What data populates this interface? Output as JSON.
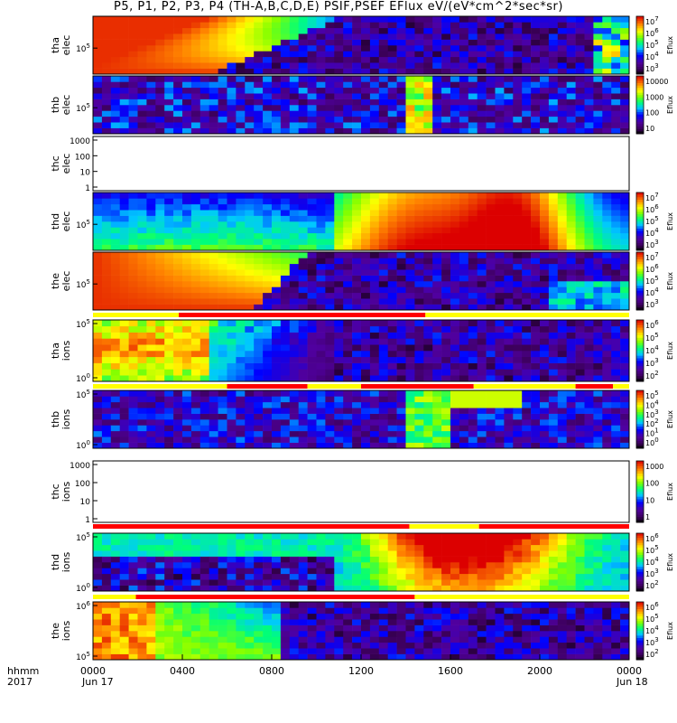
{
  "chart_data": {
    "type": "heatmap",
    "title": "P5, P1, P2, P3, P4 (TH-A,B,C,D,E) PSIF,PSEF EFlux eV/(eV*cm^2*sec*sr)",
    "x_tick_labels": [
      "0000",
      "0400",
      "0800",
      "1200",
      "1600",
      "2000",
      "0000"
    ],
    "x_date_labels": [
      "Jun 17",
      "Jun 18"
    ],
    "x_corner_labels": [
      "hhmm",
      "2017"
    ],
    "colorbar_label": "Eflux",
    "panels": [
      {
        "name": "tha elec",
        "label": [
          "tha",
          "elec"
        ],
        "y_ticks": [
          "10^5"
        ],
        "colorbar_ticks": [
          "10^7",
          "10^6",
          "10^5",
          "10^4",
          "10^3"
        ],
        "kind": "elec_a"
      },
      {
        "name": "thb elec",
        "label": [
          "thb",
          "elec"
        ],
        "y_ticks": [
          "10^5"
        ],
        "colorbar_ticks": [
          "10000",
          "1000",
          "100",
          "10"
        ],
        "kind": "elec_b"
      },
      {
        "name": "thc elec",
        "label": [
          "thc",
          "elec"
        ],
        "y_ticks": [
          "1000",
          "100",
          "10",
          "1"
        ],
        "colorbar_ticks": [],
        "kind": "empty"
      },
      {
        "name": "thd elec",
        "label": [
          "thd",
          "elec"
        ],
        "y_ticks": [
          "10^5"
        ],
        "colorbar_ticks": [
          "10^7",
          "10^6",
          "10^5",
          "10^4",
          "10^3"
        ],
        "kind": "elec_d"
      },
      {
        "name": "the elec",
        "label": [
          "the",
          "elec"
        ],
        "y_ticks": [
          "10^5"
        ],
        "colorbar_ticks": [
          "10^7",
          "10^6",
          "10^5",
          "10^4",
          "10^3"
        ],
        "kind": "elec_e"
      },
      {
        "name": "tha ions",
        "label": [
          "tha",
          "ions"
        ],
        "y_ticks": [
          "10^5",
          "10^0"
        ],
        "colorbar_ticks": [
          "10^6",
          "10^5",
          "10^4",
          "10^3",
          "10^2"
        ],
        "kind": "ion_a"
      },
      {
        "name": "thb ions",
        "label": [
          "thb",
          "ions"
        ],
        "y_ticks": [
          "10^5",
          "10^0"
        ],
        "colorbar_ticks": [
          "10^5",
          "10^4",
          "10^3",
          "10^2",
          "10^1",
          "10^0"
        ],
        "kind": "ion_b"
      },
      {
        "name": "thc ions",
        "label": [
          "thc",
          "ions"
        ],
        "y_ticks": [
          "1000",
          "100",
          "10",
          "1"
        ],
        "colorbar_ticks": [
          "1000",
          "100",
          "10",
          "1"
        ],
        "kind": "empty_cb"
      },
      {
        "name": "thd ions",
        "label": [
          "thd",
          "ions"
        ],
        "y_ticks": [
          "10^5",
          "10^0"
        ],
        "colorbar_ticks": [
          "10^6",
          "10^5",
          "10^4",
          "10^3",
          "10^2"
        ],
        "kind": "ion_d"
      },
      {
        "name": "the ions",
        "label": [
          "the",
          "ions"
        ],
        "y_ticks": [
          "10^6",
          "10^5"
        ],
        "colorbar_ticks": [
          "10^6",
          "10^5",
          "10^4",
          "10^3",
          "10^2"
        ],
        "kind": "ion_e"
      }
    ],
    "mode_bars": [
      {
        "after": "the elec",
        "segments": [
          {
            "from": 0,
            "to": 0.16,
            "color": "#ffff00"
          },
          {
            "from": 0.16,
            "to": 0.62,
            "color": "#ff0000"
          },
          {
            "from": 0.62,
            "to": 1,
            "color": "#ffff00"
          }
        ]
      },
      {
        "after": "tha ions",
        "segments": [
          {
            "from": 0,
            "to": 0.25,
            "color": "#ffff00"
          },
          {
            "from": 0.25,
            "to": 0.4,
            "color": "#ff0000"
          },
          {
            "from": 0.4,
            "to": 0.5,
            "color": "#ffff00"
          },
          {
            "from": 0.5,
            "to": 0.71,
            "color": "#ff0000"
          },
          {
            "from": 0.71,
            "to": 0.9,
            "color": "#ffff00"
          },
          {
            "from": 0.9,
            "to": 0.97,
            "color": "#ff0000"
          },
          {
            "from": 0.97,
            "to": 1,
            "color": "#ffff00"
          }
        ]
      },
      {
        "after": "thc ions",
        "segments": [
          {
            "from": 0,
            "to": 0.59,
            "color": "#ff0000"
          },
          {
            "from": 0.59,
            "to": 0.72,
            "color": "#ffff00"
          },
          {
            "from": 0.72,
            "to": 1,
            "color": "#ff0000"
          }
        ]
      },
      {
        "after": "thd ions",
        "segments": [
          {
            "from": 0,
            "to": 0.08,
            "color": "#ffff00"
          },
          {
            "from": 0.08,
            "to": 0.6,
            "color": "#ff0000"
          },
          {
            "from": 0.6,
            "to": 1,
            "color": "#ffff00"
          }
        ]
      }
    ]
  }
}
